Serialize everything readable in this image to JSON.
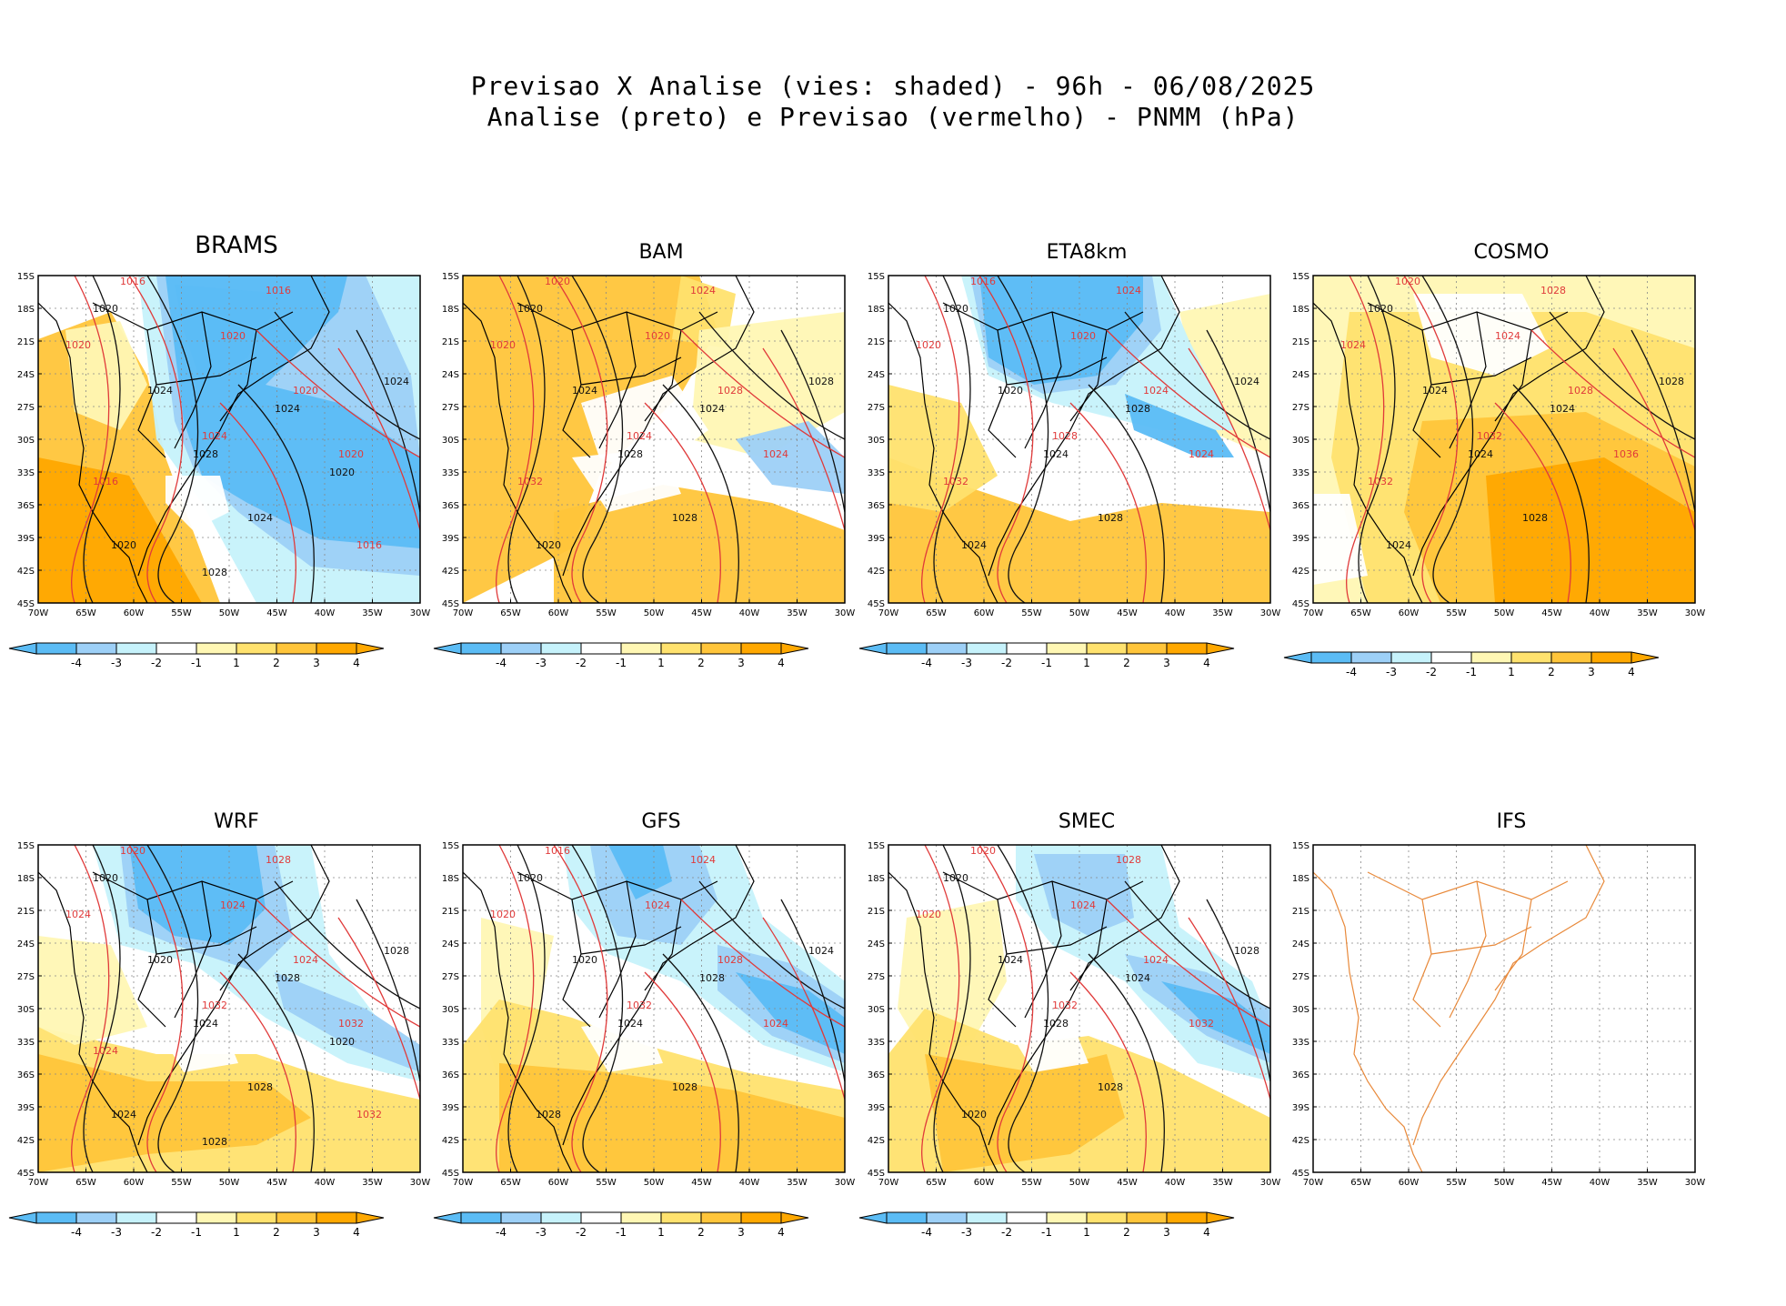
{
  "header": {
    "line1": "Previsao X Analise (vies: shaded) - 96h - 06/08/2025",
    "line2": "Analise (preto) e Previsao (vermelho) - PNMM (hPa)"
  },
  "lat_labels": [
    "15S",
    "18S",
    "21S",
    "24S",
    "27S",
    "30S",
    "33S",
    "36S",
    "39S",
    "42S",
    "45S"
  ],
  "lon_labels": [
    "70W",
    "65W",
    "60W",
    "55W",
    "50W",
    "45W",
    "40W",
    "35W",
    "30W"
  ],
  "colorbar": {
    "labels": [
      "-4",
      "-3",
      "-2",
      "-1",
      "1",
      "2",
      "3",
      "4"
    ],
    "colors": [
      "#5bbcf5",
      "#9dd0f7",
      "#c6f2fb",
      "#ffffff",
      "#fff7b4",
      "#ffe26e",
      "#ffc53a",
      "#ffa800"
    ]
  },
  "colors": {
    "analysis": "#111111",
    "forecast": "#e03a3a",
    "ifs_coast": "#e8893a"
  },
  "panels": [
    {
      "title": "BRAMS",
      "scheme": "brams",
      "labels_black": [
        "1020",
        "1024",
        "1028",
        "1024",
        "1024",
        "1020",
        "1024",
        "1020",
        "1028"
      ],
      "labels_red": [
        "1016",
        "1020",
        "1020",
        "1016",
        "1020",
        "1024",
        "1020",
        "1016",
        "1016"
      ]
    },
    {
      "title": "BAM",
      "scheme": "bam",
      "labels_black": [
        "1020",
        "1024",
        "1028",
        "1024",
        "1028",
        "1020",
        "1028"
      ],
      "labels_red": [
        "1020",
        "1020",
        "1020",
        "1024",
        "1028",
        "1024",
        "1024",
        "1032"
      ]
    },
    {
      "title": "ETA8km",
      "scheme": "eta",
      "labels_black": [
        "1020",
        "1020",
        "1024",
        "1028",
        "1024",
        "1024",
        "1028"
      ],
      "labels_red": [
        "1016",
        "1020",
        "1020",
        "1024",
        "1024",
        "1028",
        "1024",
        "1032"
      ]
    },
    {
      "title": "COSMO",
      "scheme": "cosmo",
      "labels_black": [
        "1020",
        "1024",
        "1024",
        "1024",
        "1028",
        "1024",
        "1028"
      ],
      "labels_red": [
        "1020",
        "1024",
        "1024",
        "1028",
        "1028",
        "1032",
        "1036",
        "1032"
      ]
    },
    {
      "title": "WRF",
      "scheme": "wrf",
      "labels_black": [
        "1020",
        "1020",
        "1024",
        "1028",
        "1028",
        "1024",
        "1028",
        "1020",
        "1028"
      ],
      "labels_red": [
        "1020",
        "1024",
        "1024",
        "1028",
        "1024",
        "1032",
        "1032",
        "1024",
        "1032"
      ]
    },
    {
      "title": "GFS",
      "scheme": "gfs",
      "labels_black": [
        "1020",
        "1020",
        "1024",
        "1028",
        "1024",
        "1028",
        "1028"
      ],
      "labels_red": [
        "1016",
        "1020",
        "1024",
        "1024",
        "1028",
        "1032",
        "1024"
      ]
    },
    {
      "title": "SMEC",
      "scheme": "smec",
      "labels_black": [
        "1020",
        "1024",
        "1028",
        "1024",
        "1028",
        "1020",
        "1028"
      ],
      "labels_red": [
        "1020",
        "1020",
        "1024",
        "1028",
        "1024",
        "1032",
        "1032"
      ]
    },
    {
      "title": "IFS",
      "scheme": "ifs",
      "labels_black": [],
      "labels_red": []
    }
  ]
}
